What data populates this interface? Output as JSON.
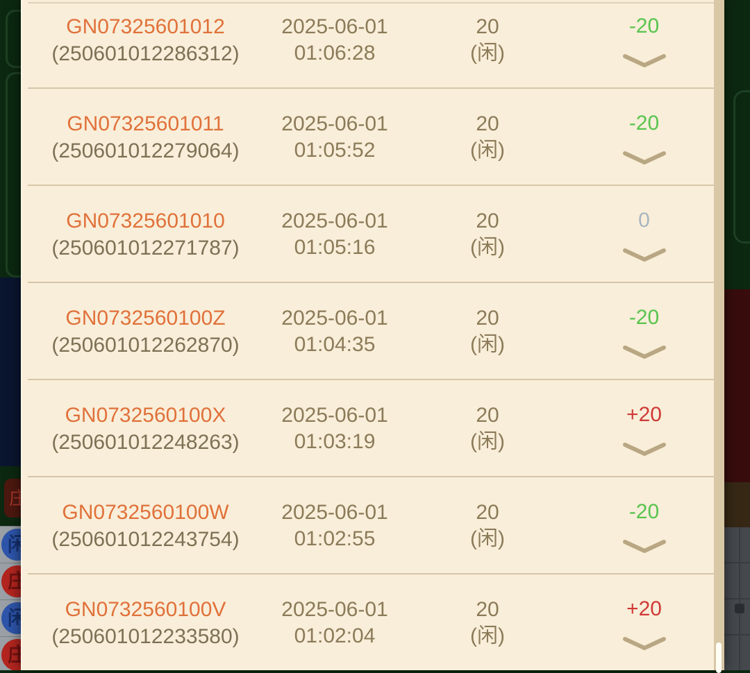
{
  "panel": {
    "description_rows": "game history list"
  },
  "rows": [
    {
      "game_id": "GN07325601012",
      "serial": "(250601012286312)",
      "date": "2025-06-01",
      "time": "01:06:28",
      "amount": "20",
      "bet_side": "(闲)",
      "result": "-20",
      "result_type": "negative"
    },
    {
      "game_id": "GN07325601011",
      "serial": "(250601012279064)",
      "date": "2025-06-01",
      "time": "01:05:52",
      "amount": "20",
      "bet_side": "(闲)",
      "result": "-20",
      "result_type": "negative"
    },
    {
      "game_id": "GN07325601010",
      "serial": "(250601012271787)",
      "date": "2025-06-01",
      "time": "01:05:16",
      "amount": "20",
      "bet_side": "(闲)",
      "result": "0",
      "result_type": "zero"
    },
    {
      "game_id": "GN0732560100Z",
      "serial": "(250601012262870)",
      "date": "2025-06-01",
      "time": "01:04:35",
      "amount": "20",
      "bet_side": "(闲)",
      "result": "-20",
      "result_type": "negative"
    },
    {
      "game_id": "GN0732560100X",
      "serial": "(250601012248263)",
      "date": "2025-06-01",
      "time": "01:03:19",
      "amount": "20",
      "bet_side": "(闲)",
      "result": "+20",
      "result_type": "positive"
    },
    {
      "game_id": "GN0732560100W",
      "serial": "(250601012243754)",
      "date": "2025-06-01",
      "time": "01:02:55",
      "amount": "20",
      "bet_side": "(闲)",
      "result": "-20",
      "result_type": "negative"
    },
    {
      "game_id": "GN0732560100V",
      "serial": "(250601012233580)",
      "date": "2025-06-01",
      "time": "01:02:04",
      "amount": "20",
      "bet_side": "(闲)",
      "result": "+20",
      "result_type": "positive"
    }
  ],
  "colors": {
    "panel_bg": "#f9eed9",
    "divider": "#d5c6a9",
    "track": "#d9c8a6",
    "id_orange": "#e0713a",
    "serial_brown": "#7d7155",
    "text_brown": "#8b7b59",
    "negative": "#58c44e",
    "positive": "#cf3937",
    "zero": "#a9b6c1",
    "chevron": "#b9a783"
  },
  "background": {
    "left_chip": "庄",
    "left_cells": [
      {
        "label": "闲",
        "color": "blue"
      },
      {
        "label": "庄",
        "color": "red"
      },
      {
        "label": "闲",
        "color": "blue"
      },
      {
        "label": "庄",
        "color": "red"
      }
    ]
  }
}
